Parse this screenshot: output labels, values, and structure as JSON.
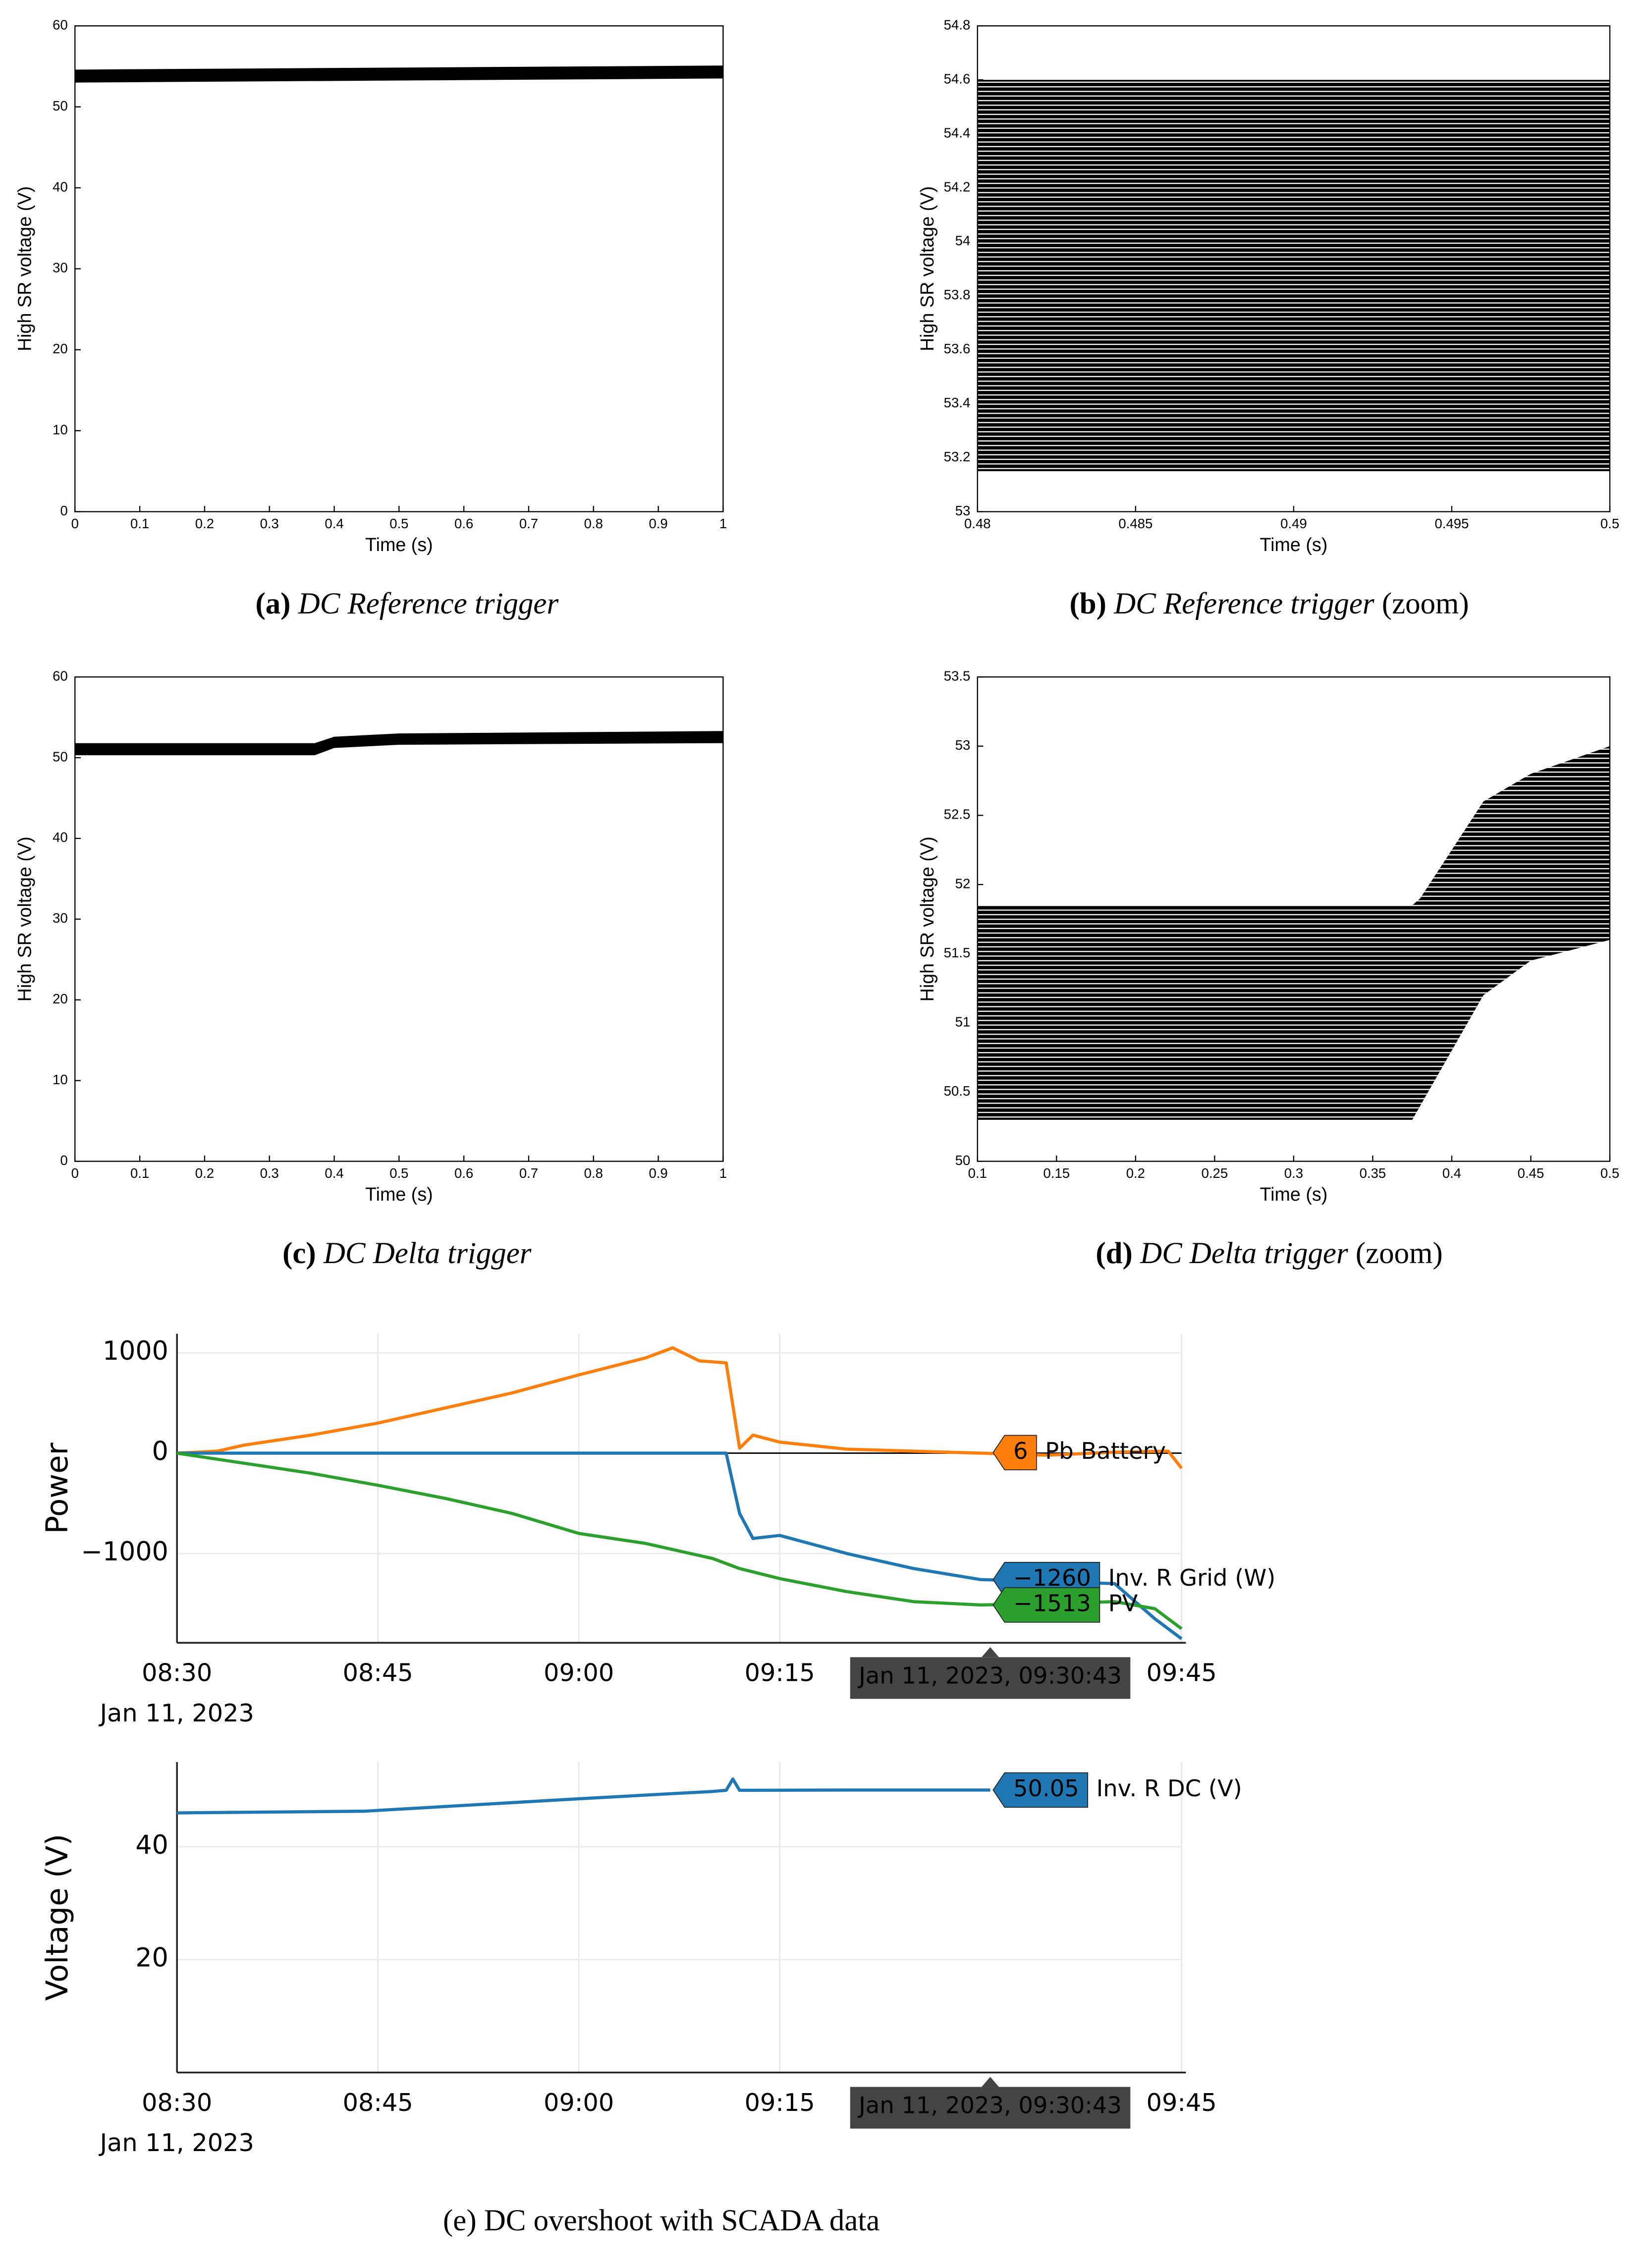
{
  "chart_data": [
    {
      "type": "band",
      "x": [
        0,
        1
      ],
      "low": [
        53,
        53.5
      ],
      "high": [
        54.6,
        55.1
      ],
      "xlim": [
        0,
        1
      ],
      "ylim": [
        0,
        60
      ],
      "xticks": [
        0,
        0.1,
        0.2,
        0.3,
        0.4,
        0.5,
        0.6,
        0.7,
        0.8,
        0.9,
        1
      ],
      "yticks": [
        0,
        10,
        20,
        30,
        40,
        50,
        60
      ],
      "xlabel": "Time (s)",
      "ylabel": "High SR voltage (V)",
      "color": "#000000",
      "caption": {
        "label": "(a)",
        "text": "DC Reference trigger"
      }
    },
    {
      "type": "band",
      "x": [
        0.48,
        0.5
      ],
      "low": [
        53.15,
        53.15
      ],
      "high": [
        54.6,
        54.6
      ],
      "xlim": [
        0.48,
        0.5
      ],
      "ylim": [
        53,
        54.8
      ],
      "xticks": [
        0.48,
        0.485,
        0.49,
        0.495,
        0.5
      ],
      "yticks": [
        53,
        53.2,
        53.4,
        53.6,
        53.8,
        54,
        54.2,
        54.4,
        54.6,
        54.8
      ],
      "xlabel": "Time (s)",
      "ylabel": "High SR voltage (V)",
      "color": "#000000",
      "caption": {
        "label": "(b)",
        "text": "DC Reference trigger",
        "note": "(zoom)"
      }
    },
    {
      "type": "band",
      "x": [
        0,
        0.37,
        0.4,
        0.5,
        1
      ],
      "low": [
        50.3,
        50.3,
        51.2,
        51.6,
        51.8
      ],
      "high": [
        51.8,
        51.8,
        52.6,
        53,
        53.3
      ],
      "xlim": [
        0,
        1
      ],
      "ylim": [
        0,
        60
      ],
      "xticks": [
        0,
        0.1,
        0.2,
        0.3,
        0.4,
        0.5,
        0.6,
        0.7,
        0.8,
        0.9,
        1
      ],
      "yticks": [
        0,
        10,
        20,
        30,
        40,
        50,
        60
      ],
      "xlabel": "Time (s)",
      "ylabel": "High SR voltage (V)",
      "color": "#000000",
      "caption": {
        "label": "(c)",
        "text": "DC Delta trigger"
      }
    },
    {
      "type": "band",
      "x": [
        0.1,
        0.375,
        0.38,
        0.42,
        0.45,
        0.5
      ],
      "low": [
        50.3,
        50.3,
        50.4,
        51.2,
        51.45,
        51.6
      ],
      "high": [
        51.85,
        51.85,
        51.9,
        52.6,
        52.8,
        53
      ],
      "xlim": [
        0.1,
        0.5
      ],
      "ylim": [
        50,
        53.5
      ],
      "xticks": [
        0.1,
        0.15,
        0.2,
        0.25,
        0.3,
        0.35,
        0.4,
        0.45,
        0.5
      ],
      "yticks": [
        50,
        50.5,
        51,
        51.5,
        52,
        52.5,
        53,
        53.5
      ],
      "xlabel": "Time (s)",
      "ylabel": "High SR voltage (V)",
      "color": "#000000",
      "caption": {
        "label": "(d)",
        "text": "DC Delta trigger",
        "note": "(zoom)"
      }
    },
    {
      "type": "line",
      "ylabel": "Power",
      "xlim": [
        "08:30",
        "09:45"
      ],
      "xticks": [
        "08:30",
        "08:45",
        "09:00",
        "09:15",
        "09:45"
      ],
      "x_sublabel": "Jan 11, 2023",
      "ylim": [
        -1890,
        1190
      ],
      "yticks": [
        {
          "value": -1000,
          "label": "−1000"
        },
        0,
        1000
      ],
      "grid": true,
      "series": [
        {
          "name": "Pb Battery",
          "color": "#ff7f0e",
          "x": [
            "08:30",
            "08:33",
            "08:35",
            "08:40",
            "08:45",
            "08:50",
            "08:55",
            "09:00",
            "09:05",
            "09:07",
            "09:09",
            "09:11",
            "09:12",
            "09:13",
            "09:15",
            "09:20",
            "09:25",
            "09:30",
            "09:35",
            "09:40",
            "09:44",
            "09:45"
          ],
          "values": [
            0,
            20,
            80,
            180,
            300,
            450,
            600,
            780,
            950,
            1050,
            920,
            900,
            50,
            180,
            110,
            40,
            20,
            0,
            -20,
            10,
            20,
            -150
          ]
        },
        {
          "name": "Inv. R Grid (W)",
          "color": "#1f77b4",
          "x": [
            "08:30",
            "08:45",
            "09:00",
            "09:11",
            "09:12",
            "09:13",
            "09:15",
            "09:20",
            "09:25",
            "09:30",
            "09:35",
            "09:40",
            "09:43",
            "09:45"
          ],
          "values": [
            0,
            0,
            0,
            0,
            -600,
            -850,
            -820,
            -1000,
            -1150,
            -1260,
            -1280,
            -1300,
            -1650,
            -1850
          ]
        },
        {
          "name": "PV",
          "color": "#2ca02c",
          "x": [
            "08:30",
            "08:35",
            "08:40",
            "08:45",
            "08:50",
            "08:55",
            "09:00",
            "09:05",
            "09:10",
            "09:12",
            "09:15",
            "09:20",
            "09:25",
            "09:30",
            "09:35",
            "09:40",
            "09:43",
            "09:45"
          ],
          "values": [
            0,
            -100,
            -200,
            -320,
            -450,
            -600,
            -800,
            -900,
            -1050,
            -1150,
            -1250,
            -1380,
            -1480,
            -1513,
            -1500,
            -1480,
            -1550,
            -1750
          ]
        }
      ],
      "hover": {
        "label": "Jan 11, 2023, 09:30:43",
        "values": [
          6,
          -1260,
          -1513
        ],
        "value_labels": [
          "6",
          "−1260",
          "−1513"
        ]
      }
    },
    {
      "type": "line",
      "ylabel": "Voltage (V)",
      "xlim": [
        "08:30",
        "09:45"
      ],
      "xticks": [
        "08:30",
        "08:45",
        "09:00",
        "09:15",
        "09:45"
      ],
      "x_sublabel": "Jan 11, 2023",
      "ylim": [
        0,
        55
      ],
      "yticks": [
        20,
        40
      ],
      "grid": true,
      "series": [
        {
          "name": "Inv. R DC (V)",
          "color": "#1f77b4",
          "x": [
            "08:30",
            "08:44",
            "09:00",
            "09:10",
            "09:11",
            "09:11:30",
            "09:12",
            "09:20",
            "09:30:43"
          ],
          "values": [
            46,
            46.3,
            48.5,
            49.8,
            50,
            52,
            50,
            50.05,
            50.05
          ]
        }
      ],
      "hover": {
        "label": "Jan 11, 2023, 09:30:43",
        "values": [
          50.05
        ]
      }
    }
  ],
  "caption": "(e) DC overshoot with SCADA data"
}
